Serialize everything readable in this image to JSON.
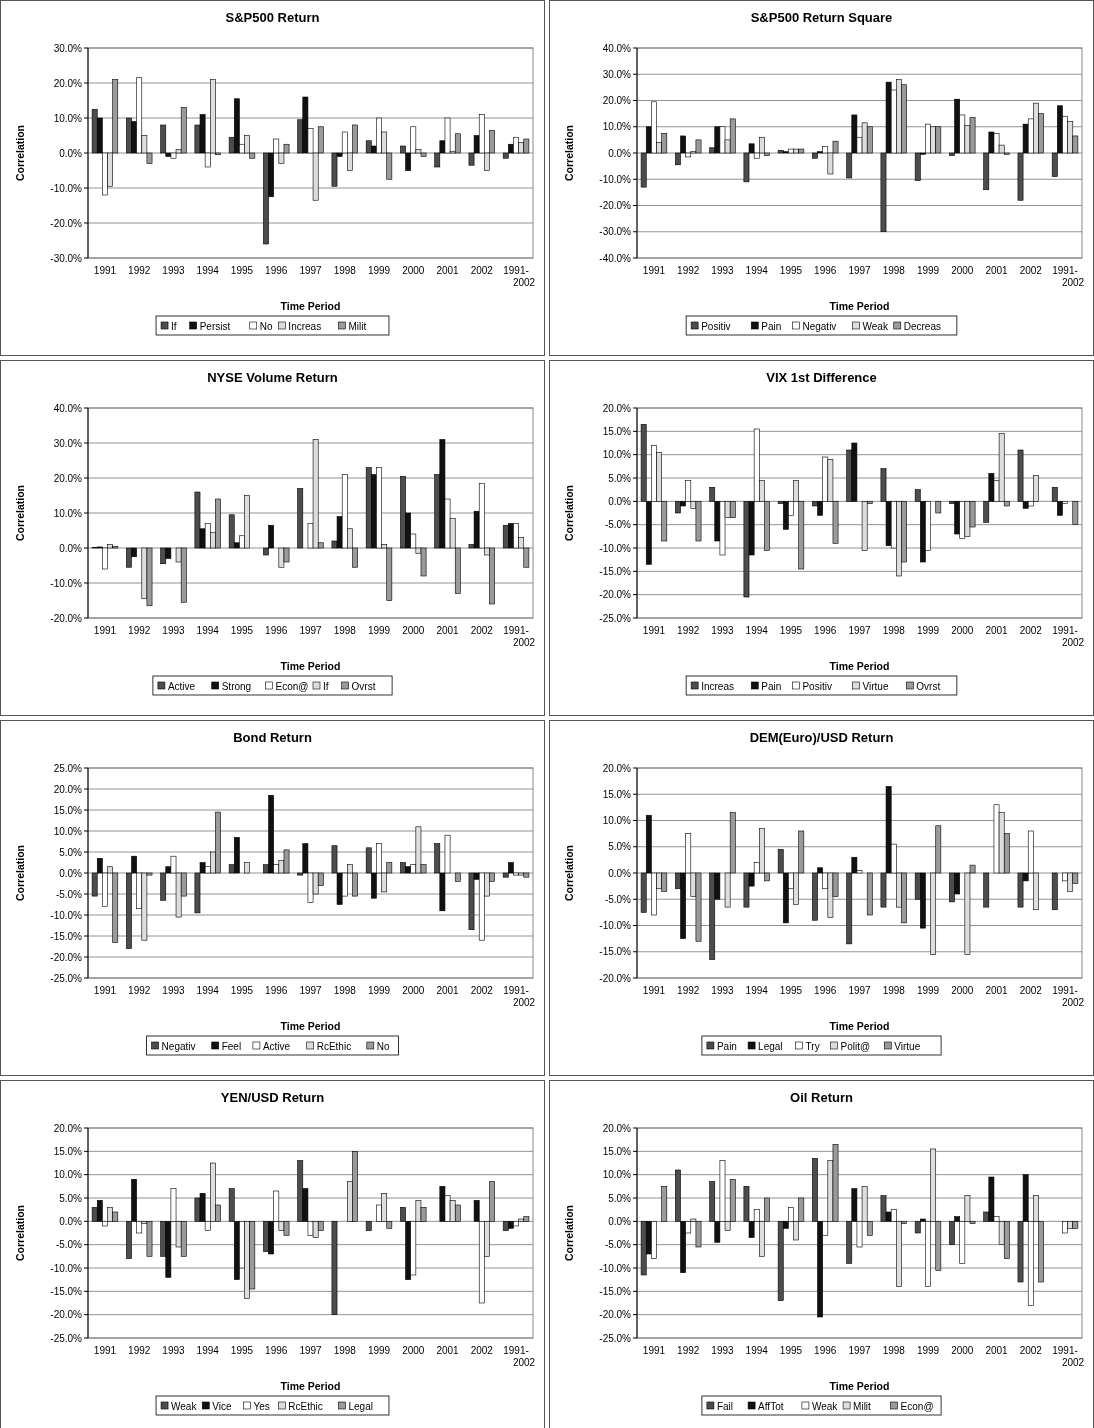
{
  "chart_data": [
    {
      "type": "bar",
      "title": "S&P500 Return",
      "xlabel": "Time Period",
      "ylabel": "Correlation",
      "categories": [
        "1991",
        "1992",
        "1993",
        "1994",
        "1995",
        "1996",
        "1997",
        "1998",
        "1999",
        "2000",
        "2001",
        "2002",
        "1991-2002"
      ],
      "ylim": [
        -30,
        30
      ],
      "yticks": [
        {
          "value": -30,
          "label": "-30.0%"
        },
        {
          "value": -20,
          "label": "-20.0%"
        },
        {
          "value": -10,
          "label": "-10.0%"
        },
        {
          "value": 0,
          "label": "0.0%"
        },
        {
          "value": 10,
          "label": "10.0%"
        },
        {
          "value": 20,
          "label": "20.0%"
        },
        {
          "value": 30,
          "label": "30.0%"
        }
      ],
      "grid": "y",
      "legend": "bottom",
      "series": [
        {
          "name": "If",
          "color": "#4d4d4d",
          "values": [
            12.5,
            10,
            8,
            8,
            4.5,
            -26,
            9.5,
            -9.5,
            3.5,
            2,
            -4,
            -3.5,
            -1.5
          ]
        },
        {
          "name": "Persist",
          "color": "#111111",
          "values": [
            10,
            9,
            -1,
            11,
            15.5,
            -12.5,
            16,
            -1,
            2,
            -5,
            3.5,
            5,
            2.5
          ]
        },
        {
          "name": "No",
          "color": "#ffffff",
          "values": [
            -12,
            21.5,
            -1.5,
            -4,
            2.5,
            4,
            7,
            6,
            10,
            7.5,
            10,
            11,
            4.5
          ]
        },
        {
          "name": "Increas",
          "color": "#dddddd",
          "values": [
            -9.5,
            5,
            1,
            21,
            5,
            -3,
            -13.5,
            -5,
            6,
            1,
            0.5,
            -5,
            3
          ]
        },
        {
          "name": "Milit",
          "color": "#9a9a9a",
          "values": [
            21,
            -3,
            13,
            -0.5,
            -1.5,
            2.5,
            7.5,
            8,
            -7.5,
            -1,
            5.5,
            6.5,
            4
          ]
        }
      ]
    },
    {
      "type": "bar",
      "title": "S&P500 Return Square",
      "xlabel": "Time Period",
      "ylabel": "Correlation",
      "categories": [
        "1991",
        "1992",
        "1993",
        "1994",
        "1995",
        "1996",
        "1997",
        "1998",
        "1999",
        "2000",
        "2001",
        "2002",
        "1991-2002"
      ],
      "ylim": [
        -40,
        40
      ],
      "yticks": [
        {
          "value": -40,
          "label": "-40.0%"
        },
        {
          "value": -30,
          "label": "-30.0%"
        },
        {
          "value": -20,
          "label": "-20.0%"
        },
        {
          "value": -10,
          "label": "-10.0%"
        },
        {
          "value": 0,
          "label": "0.0%"
        },
        {
          "value": 10,
          "label": "10.0%"
        },
        {
          "value": 20,
          "label": "20.0%"
        },
        {
          "value": 30,
          "label": "30.0%"
        },
        {
          "value": 40,
          "label": "40.0%"
        }
      ],
      "grid": "y",
      "legend": "bottom",
      "series": [
        {
          "name": "Positiv",
          "color": "#4d4d4d",
          "values": [
            -13,
            -4.5,
            2,
            -11,
            1,
            -2,
            -9.5,
            -30,
            -10.5,
            -1,
            -14,
            -18,
            -9
          ]
        },
        {
          "name": "Pain",
          "color": "#111111",
          "values": [
            10,
            6.5,
            10,
            3.5,
            0.5,
            0.5,
            14.5,
            27,
            -0.5,
            20.5,
            8,
            11,
            18
          ]
        },
        {
          "name": "Negativ",
          "color": "#ffffff",
          "values": [
            19.5,
            -1.5,
            10,
            -2,
            1.5,
            2.5,
            6,
            24,
            11,
            14.5,
            7.5,
            13,
            14
          ]
        },
        {
          "name": "Weak",
          "color": "#dddddd",
          "values": [
            4,
            0.5,
            5,
            6,
            1.5,
            -8,
            11.5,
            28,
            10,
            10.5,
            3,
            19,
            12
          ]
        },
        {
          "name": "Decreas",
          "color": "#9a9a9a",
          "values": [
            7.5,
            5,
            13,
            -1,
            1.5,
            4.5,
            10,
            26,
            10,
            13.5,
            -0.5,
            15,
            6.5
          ]
        }
      ]
    },
    {
      "type": "bar",
      "title": "NYSE Volume Return",
      "xlabel": "Time Period",
      "ylabel": "Correlation",
      "categories": [
        "1991",
        "1992",
        "1993",
        "1994",
        "1995",
        "1996",
        "1997",
        "1998",
        "1999",
        "2000",
        "2001",
        "2002",
        "1991-2002"
      ],
      "ylim": [
        -20,
        40
      ],
      "yticks": [
        {
          "value": -20,
          "label": "-20.0%"
        },
        {
          "value": -10,
          "label": "-10.0%"
        },
        {
          "value": 0,
          "label": "0.0%"
        },
        {
          "value": 10,
          "label": "10.0%"
        },
        {
          "value": 20,
          "label": "20.0%"
        },
        {
          "value": 30,
          "label": "30.0%"
        },
        {
          "value": 40,
          "label": "40.0%"
        }
      ],
      "grid": "y",
      "legend": "bottom",
      "series": [
        {
          "name": "Active",
          "color": "#4d4d4d",
          "values": [
            0.2,
            -5.5,
            -4.5,
            16,
            9.5,
            -2,
            17,
            2,
            23,
            20.5,
            21,
            1,
            6.5
          ]
        },
        {
          "name": "Strong",
          "color": "#111111",
          "values": [
            0.3,
            -2.5,
            -3,
            5.5,
            1.5,
            6.5,
            0,
            9,
            21,
            10,
            31,
            10.5,
            7
          ]
        },
        {
          "name": "Econ@",
          "color": "#ffffff",
          "values": [
            -6,
            0,
            0,
            7,
            3.5,
            0,
            7,
            21,
            23,
            4,
            14,
            18.5,
            7
          ]
        },
        {
          "name": "If",
          "color": "#dddddd",
          "values": [
            1,
            -14.5,
            -4,
            4.5,
            15,
            -5.5,
            31,
            5.5,
            1,
            -1.5,
            8.5,
            -2,
            3
          ]
        },
        {
          "name": "Ovrst",
          "color": "#9a9a9a",
          "values": [
            0.5,
            -16.5,
            -15.5,
            14,
            0,
            -4,
            1.5,
            -5.5,
            -15,
            -8,
            -13,
            -16,
            -5.5
          ]
        }
      ]
    },
    {
      "type": "bar",
      "title": "VIX 1st Difference",
      "xlabel": "Time Period",
      "ylabel": "Correlation",
      "categories": [
        "1991",
        "1992",
        "1993",
        "1994",
        "1995",
        "1996",
        "1997",
        "1998",
        "1999",
        "2000",
        "2001",
        "2002",
        "1991-2002"
      ],
      "ylim": [
        -25,
        20
      ],
      "yticks": [
        {
          "value": -25,
          "label": "-25.0%"
        },
        {
          "value": -20,
          "label": "-20.0%"
        },
        {
          "value": -15,
          "label": "-15.0%"
        },
        {
          "value": -10,
          "label": "-10.0%"
        },
        {
          "value": -5,
          "label": "-5.0%"
        },
        {
          "value": 0,
          "label": "0.0%"
        },
        {
          "value": 5,
          "label": "5.0%"
        },
        {
          "value": 10,
          "label": "10.0%"
        },
        {
          "value": 15,
          "label": "15.0%"
        },
        {
          "value": 20,
          "label": "20.0%"
        }
      ],
      "grid": "y",
      "legend": "bottom",
      "series": [
        {
          "name": "Increas",
          "color": "#4d4d4d",
          "values": [
            16.5,
            -2.5,
            3,
            -20.5,
            -0.5,
            -1,
            11,
            7,
            2.5,
            -0.5,
            -4.5,
            11,
            3
          ]
        },
        {
          "name": "Pain",
          "color": "#111111",
          "values": [
            -13.5,
            -1,
            -8.5,
            -11.5,
            -6,
            -3,
            12.5,
            -9.5,
            -13,
            -7,
            6,
            -1.5,
            -3
          ]
        },
        {
          "name": "Positiv",
          "color": "#ffffff",
          "values": [
            12,
            4.5,
            -11.5,
            15.5,
            -3,
            9.5,
            0,
            -10,
            -10.5,
            -8,
            4.5,
            -1,
            -0.5
          ]
        },
        {
          "name": "Virtue",
          "color": "#dddddd",
          "values": [
            10.5,
            -1.5,
            -3.5,
            4.5,
            4.5,
            9,
            -10.5,
            -16,
            0,
            -7.5,
            14.5,
            5.5,
            0
          ]
        },
        {
          "name": "Ovrst",
          "color": "#9a9a9a",
          "values": [
            -8.5,
            -8.5,
            -3.5,
            -10.5,
            -14.5,
            -9,
            -0.5,
            -13,
            -2.5,
            -5.5,
            -1,
            0,
            -5
          ]
        }
      ]
    },
    {
      "type": "bar",
      "title": "Bond Return",
      "xlabel": "Time Period",
      "ylabel": "Correlation",
      "categories": [
        "1991",
        "1992",
        "1993",
        "1994",
        "1995",
        "1996",
        "1997",
        "1998",
        "1999",
        "2000",
        "2001",
        "2002",
        "1991-2002"
      ],
      "ylim": [
        -25,
        25
      ],
      "yticks": [
        {
          "value": -25,
          "label": "-25.0%"
        },
        {
          "value": -20,
          "label": "-20.0%"
        },
        {
          "value": -15,
          "label": "-15.0%"
        },
        {
          "value": -10,
          "label": "-10.0%"
        },
        {
          "value": -5,
          "label": "-5.0%"
        },
        {
          "value": 0,
          "label": "0.0%"
        },
        {
          "value": 5,
          "label": "5.0%"
        },
        {
          "value": 10,
          "label": "10.0%"
        },
        {
          "value": 15,
          "label": "15.0%"
        },
        {
          "value": 20,
          "label": "20.0%"
        },
        {
          "value": 25,
          "label": "25.0%"
        }
      ],
      "grid": "y",
      "legend": "bottom",
      "series": [
        {
          "name": "Negativ",
          "color": "#4d4d4d",
          "values": [
            -5.5,
            -18,
            -6.5,
            -9.5,
            2,
            2,
            -0.5,
            6.5,
            6,
            2.5,
            7,
            -13.5,
            -1
          ]
        },
        {
          "name": "Feel",
          "color": "#111111",
          "values": [
            3.5,
            4,
            1.5,
            2.5,
            8.5,
            18.5,
            7,
            -7.5,
            -6,
            1.5,
            -9,
            -1.5,
            2.5
          ]
        },
        {
          "name": "Active",
          "color": "#ffffff",
          "values": [
            -8,
            -8.5,
            4,
            1.5,
            0,
            2,
            -7,
            -5.5,
            7,
            2,
            9,
            -16,
            -0.5
          ]
        },
        {
          "name": "RcEthic",
          "color": "#dddddd",
          "values": [
            1.5,
            -16,
            -10.5,
            5,
            2.5,
            3,
            -5,
            2,
            -4.5,
            11,
            0,
            -5.5,
            -0.5
          ]
        },
        {
          "name": "No",
          "color": "#9a9a9a",
          "values": [
            -16.5,
            -0.5,
            -5.5,
            14.5,
            0,
            5.5,
            -3,
            -5.5,
            2.5,
            2,
            -2,
            -2,
            -1
          ]
        }
      ]
    },
    {
      "type": "bar",
      "title": "DEM(Euro)/USD Return",
      "xlabel": "Time Period",
      "ylabel": "Correlation",
      "categories": [
        "1991",
        "1992",
        "1993",
        "1994",
        "1995",
        "1996",
        "1997",
        "1998",
        "1999",
        "2000",
        "2001",
        "2002",
        "1991-2002"
      ],
      "ylim": [
        -20,
        20
      ],
      "yticks": [
        {
          "value": -20,
          "label": "-20.0%"
        },
        {
          "value": -15,
          "label": "-15.0%"
        },
        {
          "value": -10,
          "label": "-10.0%"
        },
        {
          "value": -5,
          "label": "-5.0%"
        },
        {
          "value": 0,
          "label": "0.0%"
        },
        {
          "value": 5,
          "label": "5.0%"
        },
        {
          "value": 10,
          "label": "10.0%"
        },
        {
          "value": 15,
          "label": "15.0%"
        },
        {
          "value": 20,
          "label": "20.0%"
        }
      ],
      "grid": "y",
      "legend": "bottom",
      "series": [
        {
          "name": "Pain",
          "color": "#4d4d4d",
          "values": [
            -7.5,
            -3,
            -16.5,
            -6.5,
            4.5,
            -9,
            -13.5,
            -6.5,
            -5,
            -5.5,
            -6.5,
            -6.5,
            -7
          ]
        },
        {
          "name": "Legal",
          "color": "#111111",
          "values": [
            11,
            -12.5,
            -5,
            -2.5,
            -9.5,
            1,
            3,
            16.5,
            -10.5,
            -4,
            0,
            -1.5,
            0
          ]
        },
        {
          "name": "Try",
          "color": "#ffffff",
          "values": [
            -8,
            7.5,
            0,
            2,
            -3,
            -3,
            0.5,
            5.5,
            0,
            0,
            13,
            8,
            -1.5
          ]
        },
        {
          "name": "Polit@",
          "color": "#dddddd",
          "values": [
            -3,
            -4.5,
            -6.5,
            8.5,
            -6,
            -8.5,
            0,
            -6.5,
            -15.5,
            -15.5,
            11.5,
            -7,
            -3.5
          ]
        },
        {
          "name": "Virtue",
          "color": "#9a9a9a",
          "values": [
            -3.5,
            -13,
            11.5,
            -1.5,
            8,
            -4.5,
            -8,
            -9.5,
            9,
            1.5,
            7.5,
            0,
            -2
          ]
        }
      ]
    },
    {
      "type": "bar",
      "title": "YEN/USD Return",
      "xlabel": "Time Period",
      "ylabel": "Correlation",
      "categories": [
        "1991",
        "1992",
        "1993",
        "1994",
        "1995",
        "1996",
        "1997",
        "1998",
        "1999",
        "2000",
        "2001",
        "2002",
        "1991-2002"
      ],
      "ylim": [
        -25,
        20
      ],
      "yticks": [
        {
          "value": -25,
          "label": "-25.0%"
        },
        {
          "value": -20,
          "label": "-20.0%"
        },
        {
          "value": -15,
          "label": "-15.0%"
        },
        {
          "value": -10,
          "label": "-10.0%"
        },
        {
          "value": -5,
          "label": "-5.0%"
        },
        {
          "value": 0,
          "label": "0.0%"
        },
        {
          "value": 5,
          "label": "5.0%"
        },
        {
          "value": 10,
          "label": "10.0%"
        },
        {
          "value": 15,
          "label": "15.0%"
        },
        {
          "value": 20,
          "label": "20.0%"
        }
      ],
      "grid": "y",
      "legend": "bottom",
      "series": [
        {
          "name": "Weak",
          "color": "#4d4d4d",
          "values": [
            3,
            -8,
            -7.5,
            5,
            7,
            -6.5,
            13,
            -20,
            -2,
            3,
            0,
            0,
            -2
          ]
        },
        {
          "name": "Vice",
          "color": "#111111",
          "values": [
            4.5,
            9,
            -12,
            6,
            -12.5,
            -7,
            7,
            0,
            0,
            -12.5,
            7.5,
            4.5,
            -1.5
          ]
        },
        {
          "name": "Yes",
          "color": "#ffffff",
          "values": [
            -1,
            -2.5,
            7,
            -2,
            -10,
            6.5,
            -3,
            0,
            3.5,
            -11.5,
            5.5,
            -17.5,
            -1
          ]
        },
        {
          "name": "RcEthic",
          "color": "#dddddd",
          "values": [
            3,
            -0.5,
            -5.5,
            12.5,
            -16.5,
            -2,
            -3.5,
            8.5,
            6,
            4.5,
            4.5,
            -7.5,
            0.5
          ]
        },
        {
          "name": "Legal",
          "color": "#9a9a9a",
          "values": [
            2,
            -7.5,
            -7.5,
            3.5,
            -14.5,
            -3,
            -2,
            15,
            -1.5,
            3,
            3.5,
            8.5,
            1
          ]
        }
      ]
    },
    {
      "type": "bar",
      "title": "Oil Return",
      "xlabel": "Time Period",
      "ylabel": "Correlation",
      "categories": [
        "1991",
        "1992",
        "1993",
        "1994",
        "1995",
        "1996",
        "1997",
        "1998",
        "1999",
        "2000",
        "2001",
        "2002",
        "1991-2002"
      ],
      "ylim": [
        -25,
        20
      ],
      "yticks": [
        {
          "value": -25,
          "label": "-25.0%"
        },
        {
          "value": -20,
          "label": "-20.0%"
        },
        {
          "value": -15,
          "label": "-15.0%"
        },
        {
          "value": -10,
          "label": "-10.0%"
        },
        {
          "value": -5,
          "label": "-5.0%"
        },
        {
          "value": 0,
          "label": "0.0%"
        },
        {
          "value": 5,
          "label": "5.0%"
        },
        {
          "value": 10,
          "label": "10.0%"
        },
        {
          "value": 15,
          "label": "15.0%"
        },
        {
          "value": 20,
          "label": "20.0%"
        }
      ],
      "grid": "y",
      "legend": "bottom",
      "series": [
        {
          "name": "Fail",
          "color": "#4d4d4d",
          "values": [
            -11.5,
            11,
            8.5,
            7.5,
            -17,
            13.5,
            -9,
            5.5,
            -2.5,
            -5,
            2,
            -13,
            0
          ]
        },
        {
          "name": "AffTot",
          "color": "#111111",
          "values": [
            -7,
            -11,
            -4.5,
            -3.5,
            -1.5,
            -20.5,
            7,
            2,
            0.5,
            1,
            9.5,
            10,
            0
          ]
        },
        {
          "name": "Weak",
          "color": "#ffffff",
          "values": [
            -8,
            -2.5,
            13,
            2.5,
            3,
            -3,
            -5.5,
            2.5,
            -14,
            -9,
            1,
            -18,
            -2.5
          ]
        },
        {
          "name": "Milit",
          "color": "#dddddd",
          "values": [
            0,
            0.5,
            -2,
            -7.5,
            -4,
            13,
            7.5,
            -14,
            15.5,
            5.5,
            -5,
            5.5,
            -1.5
          ]
        },
        {
          "name": "Econ@",
          "color": "#9a9a9a",
          "values": [
            7.5,
            -5.5,
            9,
            5,
            5,
            16.5,
            -3,
            -0.5,
            -10.5,
            -0.5,
            -8,
            -13,
            -1.5
          ]
        }
      ]
    }
  ]
}
